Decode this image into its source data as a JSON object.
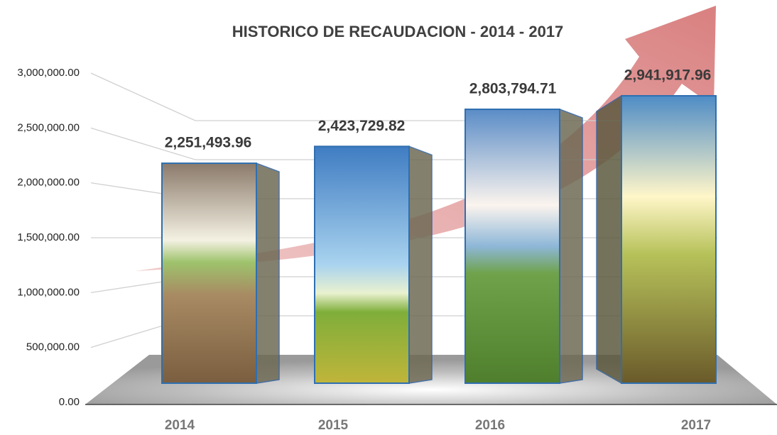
{
  "chart_data": {
    "type": "bar3d",
    "title": "HISTORICO DE RECAUDACION - 2014 - 2017",
    "categories": [
      "2014",
      "2015",
      "2016",
      "2017"
    ],
    "values": [
      2251493.96,
      2423729.82,
      2803794.71,
      2941917.96
    ],
    "value_labels": [
      "2,251,493.96",
      "2,423,729.82",
      "2,803,794.71",
      "2,941,917.96"
    ],
    "ylim": [
      0,
      3000000
    ],
    "yticks": [
      {
        "value": 0,
        "label": "0.00"
      },
      {
        "value": 500000,
        "label": "500,000.00"
      },
      {
        "value": 1000000,
        "label": "1,000,000.00"
      },
      {
        "value": 1500000,
        "label": "1,500,000.00"
      },
      {
        "value": 2000000,
        "label": "2,000,000.00"
      },
      {
        "value": 2500000,
        "label": "2,500,000.00"
      },
      {
        "value": 3000000,
        "label": "3,000,000.00"
      }
    ],
    "grid": true
  }
}
